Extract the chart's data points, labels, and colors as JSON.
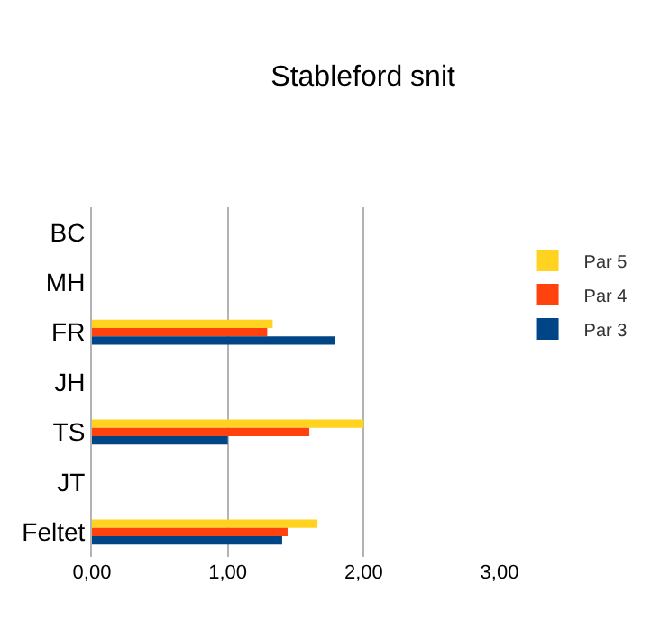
{
  "chart_data": {
    "type": "bar",
    "title": "Stableford snit",
    "orientation": "horizontal",
    "categories": [
      "BC",
      "MH",
      "FR",
      "JH",
      "TS",
      "JT",
      "Feltet"
    ],
    "series": [
      {
        "name": "Par 5",
        "color": "#ffd320",
        "values": [
          null,
          null,
          1.33,
          null,
          2.0,
          null,
          1.66
        ]
      },
      {
        "name": "Par 4",
        "color": "#ff420e",
        "values": [
          null,
          null,
          1.29,
          null,
          1.6,
          null,
          1.44
        ]
      },
      {
        "name": "Par 3",
        "color": "#004586",
        "values": [
          null,
          null,
          1.79,
          null,
          1.0,
          null,
          1.4
        ]
      }
    ],
    "xlim": [
      0,
      3
    ],
    "xticks": [
      {
        "value": 0,
        "label": "0,00"
      },
      {
        "value": 1,
        "label": "1,00"
      },
      {
        "value": 2,
        "label": "2,00"
      },
      {
        "value": 3,
        "label": "3,00"
      }
    ],
    "grid": "x",
    "legend": "right"
  }
}
